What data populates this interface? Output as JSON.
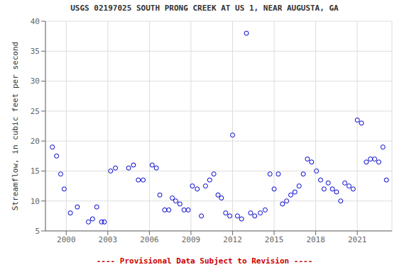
{
  "chart_data": {
    "type": "scatter",
    "title": "USGS 02197025 SOUTH PRONG CREEK AT US 1, NEAR AUGUSTA, GA",
    "y_label": "Streamflow, in cubic feet per second",
    "xlim": [
      1998.5,
      2023.5
    ],
    "ylim": [
      5,
      40
    ],
    "xticks": [
      2000,
      2003,
      2006,
      2009,
      2012,
      2015,
      2018,
      2021
    ],
    "yticks": [
      5,
      10,
      15,
      20,
      25,
      30,
      35,
      40
    ],
    "grid": true,
    "color": "#0000cc",
    "marker": "open circle",
    "annotations": [
      {
        "text": "---- Provisional Data Subject to Revision ----",
        "color": "#cc0000"
      }
    ],
    "x": [
      1999.0,
      1999.3,
      1999.6,
      1999.85,
      2000.3,
      2000.8,
      2001.6,
      2001.9,
      2002.2,
      2002.55,
      2002.75,
      2003.2,
      2003.55,
      2004.5,
      2004.85,
      2005.2,
      2005.55,
      2006.2,
      2006.5,
      2006.75,
      2007.1,
      2007.4,
      2007.65,
      2007.9,
      2008.2,
      2008.5,
      2008.8,
      2009.1,
      2009.45,
      2009.75,
      2010.05,
      2010.35,
      2010.65,
      2010.95,
      2011.2,
      2011.5,
      2011.8,
      2012.0,
      2012.35,
      2012.65,
      2013.0,
      2013.3,
      2013.6,
      2014.0,
      2014.35,
      2014.7,
      2015.0,
      2015.3,
      2015.6,
      2015.9,
      2016.2,
      2016.5,
      2016.8,
      2017.1,
      2017.4,
      2017.7,
      2018.05,
      2018.35,
      2018.6,
      2018.9,
      2019.2,
      2019.5,
      2019.8,
      2020.1,
      2020.4,
      2020.7,
      2021.0,
      2021.3,
      2021.65,
      2021.95,
      2022.25,
      2022.55,
      2022.85,
      2023.1
    ],
    "values": [
      19.0,
      17.5,
      14.5,
      12.0,
      8.0,
      9.0,
      6.5,
      7.0,
      9.0,
      6.5,
      6.5,
      15.0,
      15.5,
      15.5,
      16.0,
      13.5,
      13.5,
      16.0,
      15.5,
      11.0,
      8.5,
      8.5,
      10.5,
      10.0,
      9.5,
      8.5,
      8.5,
      12.5,
      12.0,
      7.5,
      12.5,
      13.5,
      14.5,
      11.0,
      10.5,
      8.0,
      7.5,
      21.0,
      7.5,
      7.0,
      38.0,
      8.0,
      7.5,
      8.0,
      8.5,
      14.5,
      12.0,
      14.5,
      9.5,
      10.0,
      11.0,
      11.5,
      12.5,
      14.5,
      17.0,
      16.5,
      15.0,
      13.5,
      12.0,
      13.0,
      12.0,
      11.5,
      10.0,
      13.0,
      12.5,
      12.0,
      23.5,
      23.0,
      16.5,
      17.0,
      17.0,
      16.5,
      19.0,
      13.5
    ]
  }
}
